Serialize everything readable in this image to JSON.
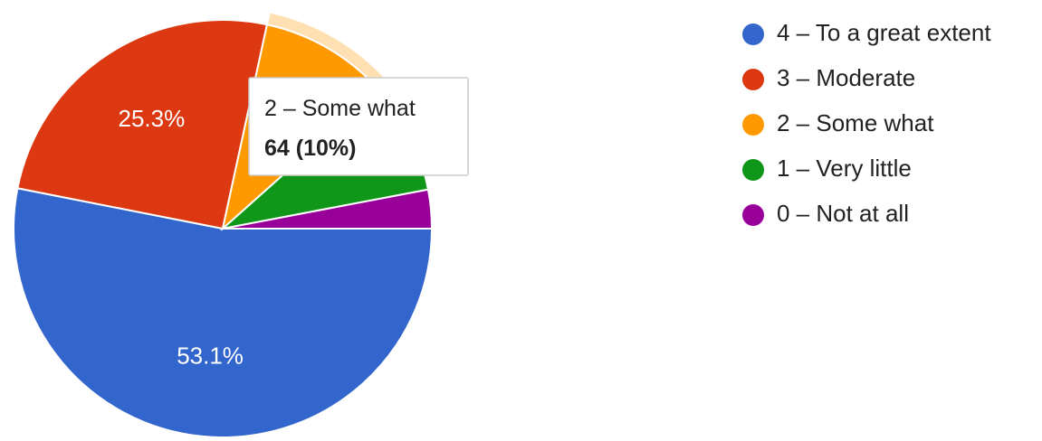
{
  "colors": {
    "series": [
      "#3366cc",
      "#dc3912",
      "#ff9900",
      "#109618",
      "#990099"
    ],
    "hover_ring": "#ffe0b2"
  },
  "chart_data": {
    "type": "pie",
    "categories": [
      "4 – To a great extent",
      "3 – Moderate",
      "2 – Some what",
      "1 – Very little",
      "0 – Not at all"
    ],
    "values": [
      53.1,
      25.3,
      10.0,
      8.6,
      3.0
    ],
    "slice_labels": [
      "53.1%",
      "25.3%",
      "",
      "",
      ""
    ],
    "legend_position": "right",
    "highlighted_slice": 2
  },
  "tooltip": {
    "title": "2 – Some what",
    "value": "64 (10%)"
  }
}
